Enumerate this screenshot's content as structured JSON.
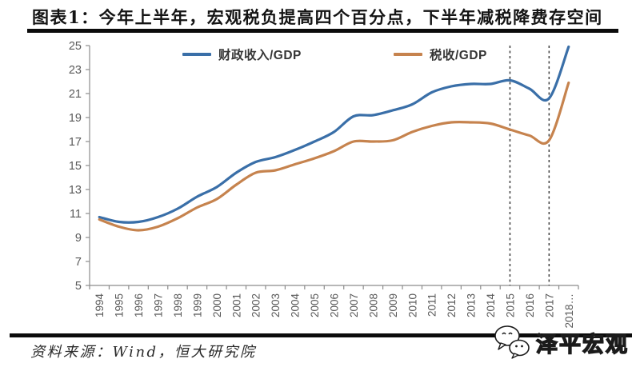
{
  "header": {
    "title": "图表1：今年上半年，宏观税负提高四个百分点，下半年减税降费存空间"
  },
  "chart_data": {
    "type": "line",
    "title": "图表1：今年上半年，宏观税负提高四个百分点，下半年减税降费存空间",
    "xticklabels": [
      "1994",
      "1995",
      "1996",
      "1997",
      "1998",
      "1999",
      "2000",
      "2001",
      "2002",
      "2003",
      "2004",
      "2005",
      "2006",
      "2007",
      "2008",
      "2009",
      "2010",
      "2011",
      "2012",
      "2013",
      "2014",
      "2015",
      "2016",
      "2017",
      "2018…"
    ],
    "yticks": [
      5,
      7,
      9,
      11,
      13,
      15,
      17,
      19,
      21,
      23,
      25
    ],
    "ylim": [
      5,
      25
    ],
    "grid": false,
    "smooth": true,
    "legend_position": "top",
    "vlines_dashed": [
      "2015",
      "2017"
    ],
    "series": [
      {
        "name": "财政收入/GDP",
        "color": "#3a6fa8",
        "values": [
          10.7,
          10.3,
          10.3,
          10.7,
          11.4,
          12.4,
          13.2,
          14.4,
          15.3,
          15.7,
          16.3,
          17.0,
          17.8,
          19.1,
          19.2,
          19.6,
          20.1,
          21.1,
          21.6,
          21.8,
          21.8,
          22.1,
          21.4,
          20.6,
          24.9
        ]
      },
      {
        "name": "税收/GDP",
        "color": "#c6834e",
        "values": [
          10.5,
          9.9,
          9.6,
          9.9,
          10.6,
          11.5,
          12.2,
          13.4,
          14.4,
          14.6,
          15.1,
          15.6,
          16.2,
          17.0,
          17.0,
          17.1,
          17.8,
          18.3,
          18.6,
          18.6,
          18.5,
          18.0,
          17.5,
          17.1,
          21.9
        ]
      }
    ],
    "axis_color": "#8c8c8c",
    "tick_label_color": "#595959",
    "vline_color": "#3d3d3d"
  },
  "footer": {
    "source": "资料来源：Wind，恒大研究院",
    "logo_text": "泽平宏观",
    "logo_icon": "wechat-bubbles-icon"
  }
}
